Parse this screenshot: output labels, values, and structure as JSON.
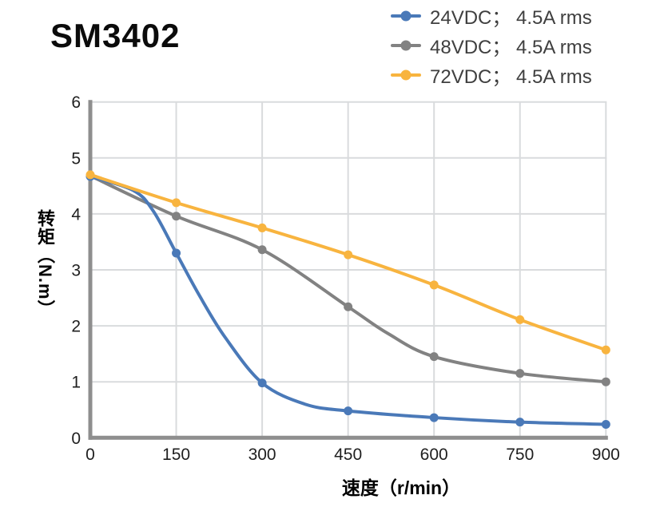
{
  "chart_data": {
    "type": "line",
    "title": "SM3402",
    "xlabel": "速度（r/min）",
    "ylabel": "转矩（N.m）",
    "xlim": [
      0,
      900
    ],
    "ylim": [
      0,
      6
    ],
    "x_ticks": [
      0,
      150,
      300,
      450,
      600,
      750,
      900
    ],
    "y_ticks": [
      0,
      1,
      2,
      3,
      4,
      5,
      6
    ],
    "grid": true,
    "legend_position": "top-right",
    "x": [
      0,
      150,
      300,
      450,
      600,
      750,
      900
    ],
    "series": [
      {
        "name": "24VDC； 4.5A rms",
        "color": "#4A79B8",
        "values": [
          4.67,
          3.3,
          0.98,
          0.48,
          0.36,
          0.28,
          0.24
        ],
        "curve_extra": [
          [
            75,
            4.42
          ],
          [
            110,
            4.05
          ],
          [
            190,
            2.55
          ],
          [
            235,
            1.8
          ],
          [
            375,
            0.6
          ]
        ]
      },
      {
        "name": "48VDC； 4.5A rms",
        "color": "#828282",
        "values": [
          4.68,
          3.96,
          3.36,
          2.34,
          1.45,
          1.15,
          1.0
        ],
        "curve_extra": [
          [
            520,
            1.86
          ]
        ]
      },
      {
        "name": "72VDC； 4.5A rms",
        "color": "#F8B43F",
        "values": [
          4.7,
          4.2,
          3.75,
          3.27,
          2.73,
          2.11,
          1.57
        ],
        "curve_extra": []
      }
    ],
    "draw_order": [
      1,
      0,
      2
    ],
    "axis_color": "#8E8E8E",
    "grid_color": "#D9DBDD",
    "tick_label_color": "#1F1F1F",
    "legend_text_color": "#3F3F3F"
  }
}
